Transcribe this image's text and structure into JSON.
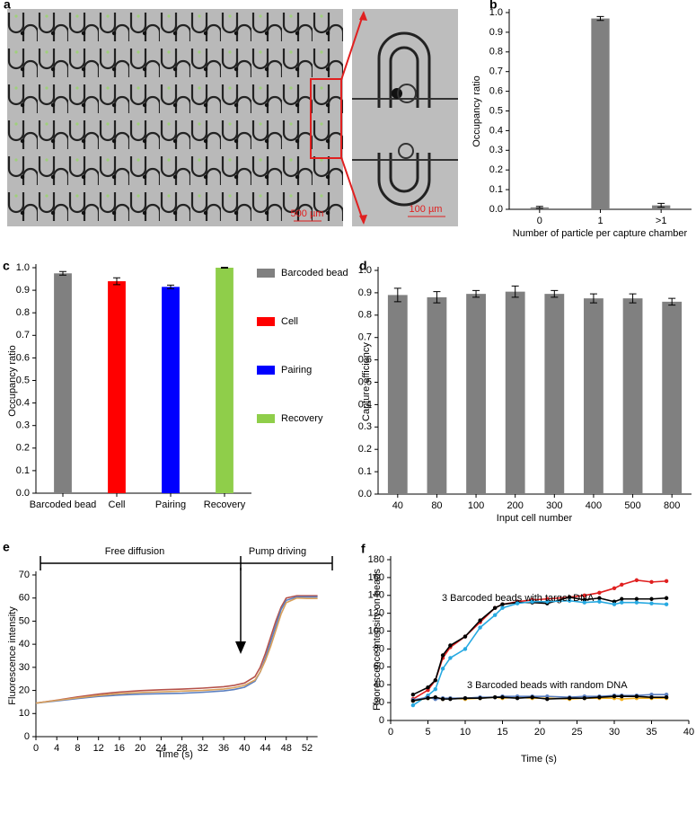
{
  "figure": {
    "panel_labels": [
      "a",
      "b",
      "c",
      "d",
      "e",
      "f"
    ],
    "scale_bars": [
      "500 µm",
      "100 µm"
    ]
  },
  "chart_data": [
    {
      "type": "bar",
      "categories": [
        "0",
        "1",
        ">1"
      ],
      "values": [
        0.01,
        0.97,
        0.02
      ],
      "errors": [
        0.005,
        0.01,
        0.01
      ],
      "color": "#808080",
      "ylim": [
        0,
        1
      ],
      "yticks": [
        {
          "value": 0,
          "label": "0.0"
        },
        0.1,
        0.2,
        0.3,
        0.4,
        0.5,
        0.6,
        0.7,
        0.8,
        0.9,
        {
          "value": 1,
          "label": "1.0"
        }
      ],
      "xlabel": "Number of particle per capture chamber",
      "ylabel": "Occupancy ratio"
    },
    {
      "type": "bar",
      "categories": [
        "Barcoded bead",
        "Cell",
        "Pairing",
        "Recovery"
      ],
      "values": [
        0.975,
        0.94,
        0.915,
        1.0
      ],
      "errors": [
        0.008,
        0.015,
        0.008,
        0.002
      ],
      "colors": [
        "#808080",
        "#ff0000",
        "#0000ff",
        "#8fce4a"
      ],
      "legend": "right",
      "ylim": [
        0,
        1
      ],
      "yticks": [
        {
          "value": 0,
          "label": "0.0"
        },
        0.1,
        0.2,
        0.3,
        0.4,
        0.5,
        0.6,
        0.7,
        0.8,
        0.9,
        {
          "value": 1,
          "label": "1.0"
        }
      ],
      "ylabel": "Occupancy ratio"
    },
    {
      "type": "bar",
      "categories": [
        "40",
        "80",
        "100",
        "200",
        "300",
        "400",
        "500",
        "800"
      ],
      "values": [
        0.89,
        0.88,
        0.895,
        0.905,
        0.895,
        0.875,
        0.875,
        0.86
      ],
      "errors": [
        0.03,
        0.025,
        0.015,
        0.025,
        0.015,
        0.02,
        0.02,
        0.015
      ],
      "color": "#808080",
      "ylim": [
        0,
        1
      ],
      "yticks": [
        {
          "value": 0,
          "label": "0.0"
        },
        0.1,
        0.2,
        0.3,
        0.4,
        0.5,
        0.6,
        0.7,
        0.8,
        0.9,
        {
          "value": 1,
          "label": "1.0"
        }
      ],
      "xlabel": "Input cell number",
      "ylabel": "Capture efficiency"
    },
    {
      "type": "line",
      "x": [
        0,
        4,
        8,
        12,
        16,
        20,
        24,
        28,
        32,
        36,
        38,
        40,
        42,
        43,
        44,
        45,
        46,
        47,
        48,
        50,
        52,
        54
      ],
      "series": [
        {
          "color": "#b5524a",
          "values": [
            14.5,
            15.8,
            17.2,
            18.4,
            19.3,
            19.9,
            20.3,
            20.6,
            21.0,
            21.6,
            22.2,
            23.2,
            26,
            30,
            36,
            43,
            50,
            56,
            60,
            61,
            61,
            61
          ]
        },
        {
          "color": "#5b7fc0",
          "values": [
            14.5,
            15.5,
            16.5,
            17.4,
            18.0,
            18.4,
            18.6,
            18.8,
            19.2,
            19.8,
            20.4,
            21.4,
            24,
            28,
            34,
            41,
            48,
            55,
            59,
            60.5,
            60.5,
            60.5
          ]
        },
        {
          "color": "#d9a05b",
          "values": [
            14.5,
            15.7,
            16.8,
            17.8,
            18.6,
            19.1,
            19.4,
            19.7,
            20.0,
            20.6,
            21.2,
            22.2,
            24.5,
            28,
            33,
            39,
            46,
            53,
            58,
            60,
            59.8,
            59.8
          ]
        }
      ],
      "xlim": [
        0,
        54
      ],
      "xticks": [
        0,
        4,
        8,
        12,
        16,
        20,
        24,
        28,
        32,
        36,
        40,
        44,
        48,
        52
      ],
      "ylim": [
        0,
        70
      ],
      "yticks": [
        0,
        10,
        20,
        30,
        40,
        50,
        60,
        70
      ],
      "xlabel": "Time (s)",
      "ylabel": "Fluorescence intensity",
      "annotations": [
        "Free diffusion",
        "Pump driving"
      ]
    },
    {
      "type": "line",
      "markers": true,
      "x": [
        3,
        5,
        6,
        7,
        8,
        10,
        12,
        14,
        15,
        17,
        19,
        21,
        24,
        26,
        28,
        30,
        31,
        33,
        35,
        37
      ],
      "series": [
        {
          "color": "#e02020",
          "values": [
            24,
            34,
            45,
            70,
            82,
            94,
            110,
            126,
            130,
            133,
            135,
            136,
            138,
            140,
            143,
            148,
            152,
            157,
            155,
            156
          ]
        },
        {
          "color": "#000000",
          "values": [
            29,
            37,
            45,
            73,
            84,
            94,
            112,
            126,
            130,
            132,
            132,
            131,
            138,
            135,
            137,
            133,
            136,
            136,
            136,
            137
          ]
        },
        {
          "color": "#27a9e1",
          "values": [
            17,
            28,
            35,
            58,
            70,
            80,
            104,
            118,
            126,
            131,
            133,
            133,
            134,
            132,
            133,
            130,
            132,
            132,
            131,
            130
          ]
        },
        {
          "color": "#f5b220",
          "values": [
            22,
            25,
            25,
            24,
            25,
            24,
            25,
            26,
            25,
            26,
            25,
            25,
            24,
            25,
            25,
            25,
            24,
            25,
            25,
            25
          ]
        },
        {
          "color": "#5b7fc0",
          "values": [
            23,
            26,
            24,
            25,
            25,
            25,
            26,
            26,
            27,
            27,
            27,
            27,
            26,
            27,
            27,
            28,
            28,
            28,
            29,
            29
          ]
        },
        {
          "color": "#000000",
          "values": [
            22,
            25,
            26,
            24,
            24,
            25,
            25,
            26,
            26,
            25,
            26,
            24,
            25,
            25,
            26,
            27,
            27,
            27,
            26,
            26
          ]
        }
      ],
      "xlim": [
        0,
        40
      ],
      "xticks": [
        0,
        5,
        10,
        15,
        20,
        25,
        30,
        35,
        40
      ],
      "ylim": [
        0,
        180
      ],
      "yticks": [
        0,
        20,
        40,
        60,
        80,
        100,
        120,
        140,
        160,
        180
      ],
      "xlabel": "Time (s)",
      "ylabel": "Fluorescence intensity on beads",
      "annotations": [
        "3 Barcoded beads with target DNA",
        "3 Barcoded beads with random DNA"
      ]
    }
  ]
}
